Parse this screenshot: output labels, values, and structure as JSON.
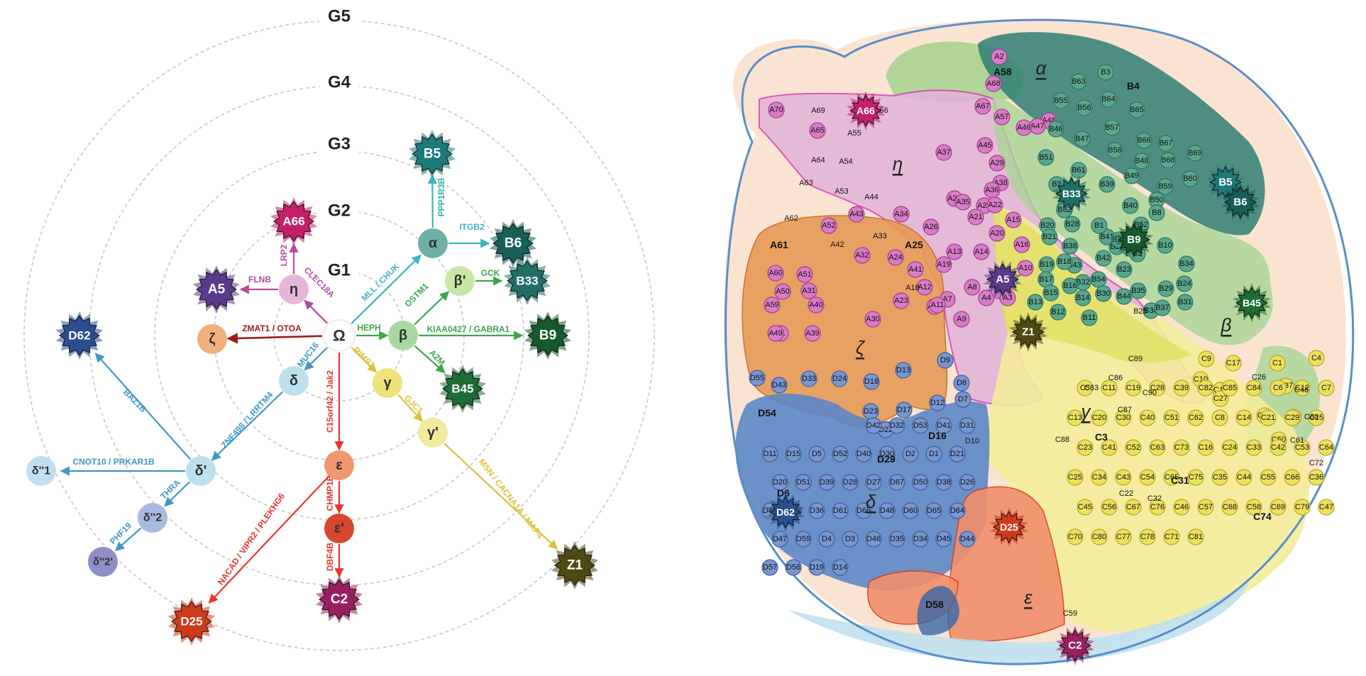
{
  "left_diagram": {
    "rings": [
      "G1",
      "G2",
      "G3",
      "G4",
      "G5"
    ],
    "center": "Ω",
    "nodes": [
      {
        "id": "alpha",
        "label": "α",
        "color": "#6fb0a6"
      },
      {
        "id": "beta",
        "label": "β",
        "color": "#a8d8a0"
      },
      {
        "id": "betap",
        "label": "β'",
        "color": "#c8e6a6"
      },
      {
        "id": "gamma",
        "label": "γ",
        "color": "#eee27a"
      },
      {
        "id": "gammap",
        "label": "γ'",
        "color": "#f2eb9e"
      },
      {
        "id": "delta",
        "label": "δ",
        "color": "#bde0ee"
      },
      {
        "id": "deltap",
        "label": "δ'",
        "color": "#bde0ee"
      },
      {
        "id": "delta2",
        "label": "δ''2",
        "color": "#a9b9e0"
      },
      {
        "id": "delta2p",
        "label": "δ''2'",
        "color": "#8e8ec9"
      },
      {
        "id": "delta1",
        "label": "δ''1",
        "color": "#c2dff2"
      },
      {
        "id": "eps",
        "label": "ε",
        "color": "#f09770"
      },
      {
        "id": "epsp",
        "label": "ε'",
        "color": "#d7462e"
      },
      {
        "id": "eta",
        "label": "η",
        "color": "#e6b6d8"
      },
      {
        "id": "zeta",
        "label": "ζ",
        "color": "#f2b07c"
      }
    ],
    "stars": [
      {
        "id": "B5",
        "label": "B5",
        "color": "#1d7a78"
      },
      {
        "id": "B6",
        "label": "B6",
        "color": "#175f58"
      },
      {
        "id": "B33",
        "label": "B33",
        "color": "#1f6f67"
      },
      {
        "id": "B9",
        "label": "B9",
        "color": "#17592b"
      },
      {
        "id": "B45",
        "label": "B45",
        "color": "#1e6b35"
      },
      {
        "id": "A66",
        "label": "A66",
        "color": "#c4206a"
      },
      {
        "id": "A5",
        "label": "A5",
        "color": "#5a3a8a"
      },
      {
        "id": "D62",
        "label": "D62",
        "color": "#2a4f8f"
      },
      {
        "id": "Z1",
        "label": "Z1",
        "color": "#4e4a12"
      },
      {
        "id": "C2",
        "label": "C2",
        "color": "#9a1f60"
      },
      {
        "id": "D25",
        "label": "D25",
        "color": "#d03a1b"
      }
    ],
    "edge_labels": {
      "chuk": "MLL / CHUK",
      "ppp1r3b": "PPP1R3B",
      "itgb2": "ITGB2",
      "ostm1": "OSTM1",
      "gck": "GCK",
      "heph": "HEPH",
      "kiaa": "KIAA0427 / GABRA1",
      "a2m": "A2M",
      "rims2": "RIMS2",
      "gjc1": "GJC1",
      "msn": "MSN / CACNA1A / MAP4",
      "jak2": "C15orf42 / Jak2",
      "chmp1b": "CHMP1B",
      "dbf4b": "DBF4B",
      "plekhg6": "NACAD / VIPR2 / PLEKHG6",
      "muc16": "MUC16",
      "znf": "ZNF498 / LRRTM4",
      "baz1b": "BAZ1B",
      "cnot": "CNOT10 / PRKAR1B",
      "thra": "THRA",
      "phf19": "PHF19",
      "zmat": "ZMAT1 / OTOA",
      "clec": "CLEC18A",
      "flnb": "FLNB",
      "lrp2": "LRP2"
    },
    "edge_colors": {
      "alpha": "#3bb3c3",
      "beta": "#3aa64a",
      "gamma": "#d8c23c",
      "delta": "#3f97c4",
      "eps": "#e5372e",
      "eta": "#b04aa4",
      "zeta": "#9e1b1b"
    }
  },
  "right_map": {
    "region_labels": {
      "alpha": "α",
      "eta": "η",
      "zeta": "ζ",
      "beta": "β",
      "gamma": "γ",
      "delta": "δ",
      "epsilon": "ε"
    },
    "stars": [
      "A66",
      "A5",
      "B33",
      "B9",
      "B5",
      "B6",
      "B45",
      "Z1",
      "D62",
      "D25",
      "C2"
    ],
    "bold_labels": [
      "A58",
      "A61",
      "A25",
      "B4",
      "D54",
      "D29",
      "D16",
      "D6",
      "D58",
      "C3",
      "C31",
      "C74"
    ],
    "region_colors": {
      "alpha": "#2f7f74",
      "eta": "#e2b3d9",
      "zeta": "#e59a58",
      "beta": "#a8d496",
      "gamma": "#f3ec9a",
      "delta": "#5c86c6",
      "epsilon": "#f18f6c",
      "bg": "#fbe3d2"
    },
    "A_dots": [
      "A2",
      "A68",
      "A67",
      "A57",
      "A48",
      "A47",
      "A46",
      "A70",
      "A65",
      "A45",
      "A37",
      "A29",
      "A38",
      "A36",
      "A28",
      "A35",
      "A27",
      "A22",
      "A43",
      "A34",
      "A26",
      "A21",
      "A20",
      "A14",
      "A13",
      "A19",
      "A12",
      "A8",
      "A7",
      "A9",
      "A4",
      "A6",
      "A3",
      "A15",
      "A16",
      "A10",
      "A52",
      "A32",
      "A24",
      "A41",
      "A51",
      "A31",
      "A60",
      "A50",
      "A23",
      "A17",
      "A11",
      "A59",
      "A40",
      "A30",
      "A1",
      "A49",
      "A39"
    ],
    "A_plain": [
      "A69",
      "A56",
      "A55",
      "A64",
      "A54",
      "A63",
      "A53",
      "A44",
      "A62",
      "A42",
      "A33",
      "A18"
    ],
    "B_dots": [
      "B63",
      "B3",
      "B55",
      "B56",
      "B64",
      "B65",
      "B46",
      "B47",
      "B57",
      "B66",
      "B58",
      "B67",
      "B48",
      "B68",
      "B69",
      "B49",
      "B39",
      "B59",
      "B60",
      "B50",
      "B40",
      "B51",
      "B61",
      "B7",
      "B27",
      "B41",
      "B8",
      "B28",
      "B1",
      "B52",
      "B62",
      "B42",
      "B22",
      "B2",
      "B10",
      "B34",
      "B43",
      "B54",
      "B23",
      "B29",
      "B35",
      "B24",
      "B44",
      "B30",
      "B36",
      "B31",
      "B37",
      "B38",
      "B32",
      "B26",
      "B20",
      "B21",
      "B19",
      "B18",
      "B17",
      "B16",
      "B15",
      "B13",
      "B12",
      "B11",
      "B14"
    ],
    "B_plain": [
      "B25"
    ],
    "C_dots": [
      "C9",
      "C10",
      "C18",
      "C17",
      "C1",
      "C27",
      "C37",
      "C38",
      "C49",
      "C50",
      "C4",
      "C5",
      "C11",
      "C19",
      "C28",
      "C39",
      "C82",
      "C85",
      "C84",
      "C6",
      "C12",
      "C7",
      "C13",
      "C20",
      "C30",
      "C40",
      "C51",
      "C62",
      "C8",
      "C14",
      "C21",
      "C29",
      "C15",
      "C23",
      "C41",
      "C52",
      "C63",
      "C73",
      "C16",
      "C24",
      "C33",
      "C42",
      "C53",
      "C64",
      "C25",
      "C34",
      "C43",
      "C54",
      "C65",
      "C75",
      "C35",
      "C44",
      "C55",
      "C66",
      "C36",
      "C45",
      "C56",
      "C67",
      "C76",
      "C46",
      "C57",
      "C68",
      "C58",
      "C69",
      "C79",
      "C47",
      "C70",
      "C80",
      "C77",
      "C78",
      "C71",
      "C81"
    ],
    "C_plain": [
      "C89",
      "C83",
      "C86",
      "C90",
      "C87",
      "C88",
      "C26",
      "C48",
      "C60",
      "C61",
      "C72",
      "C22",
      "C32",
      "C59"
    ],
    "D_dots": [
      "D9",
      "D8",
      "D7",
      "D55",
      "D43",
      "D33",
      "D24",
      "D18",
      "D13",
      "D23",
      "D17",
      "D12",
      "D22",
      "D42",
      "D32",
      "D53",
      "D41",
      "D31",
      "D11",
      "D15",
      "D5",
      "D52",
      "D40",
      "D30",
      "D2",
      "D1",
      "D21",
      "D20",
      "D51",
      "D39",
      "D28",
      "D27",
      "D67",
      "D50",
      "D38",
      "D26",
      "D49",
      "D37",
      "D36",
      "D61",
      "D66",
      "D48",
      "D60",
      "D65",
      "D64",
      "D47",
      "D59",
      "D4",
      "D3",
      "D46",
      "D35",
      "D34",
      "D45",
      "D44",
      "D57",
      "D56",
      "D19",
      "D14"
    ],
    "D_plain": [
      "D10"
    ],
    "D6_dot": "D6"
  }
}
